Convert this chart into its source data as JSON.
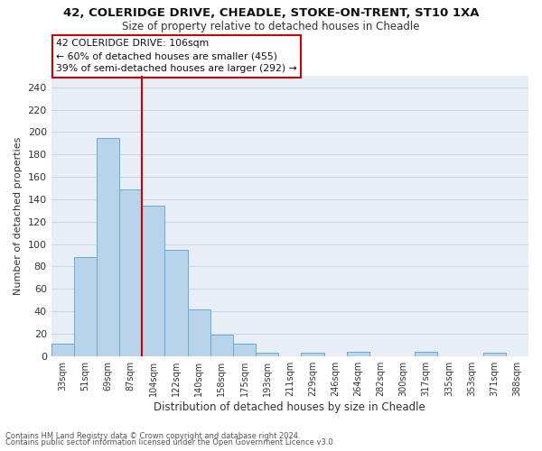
{
  "title": "42, COLERIDGE DRIVE, CHEADLE, STOKE-ON-TRENT, ST10 1XA",
  "subtitle": "Size of property relative to detached houses in Cheadle",
  "xlabel": "Distribution of detached houses by size in Cheadle",
  "ylabel": "Number of detached properties",
  "footnote1": "Contains HM Land Registry data © Crown copyright and database right 2024.",
  "footnote2": "Contains public sector information licensed under the Open Government Licence v3.0.",
  "bar_labels": [
    "33sqm",
    "51sqm",
    "69sqm",
    "87sqm",
    "104sqm",
    "122sqm",
    "140sqm",
    "158sqm",
    "175sqm",
    "193sqm",
    "211sqm",
    "229sqm",
    "246sqm",
    "264sqm",
    "282sqm",
    "300sqm",
    "317sqm",
    "335sqm",
    "353sqm",
    "371sqm",
    "388sqm"
  ],
  "bar_values": [
    11,
    88,
    195,
    149,
    134,
    95,
    42,
    19,
    11,
    3,
    0,
    3,
    0,
    4,
    0,
    0,
    4,
    0,
    0,
    3,
    0
  ],
  "bar_color": "#b8d4ea",
  "bar_edge_color": "#6aaad4",
  "vline_color": "#cc0000",
  "ylim": [
    0,
    250
  ],
  "yticks": [
    0,
    20,
    40,
    60,
    80,
    100,
    120,
    140,
    160,
    180,
    200,
    220,
    240
  ],
  "annotation_title": "42 COLERIDGE DRIVE: 106sqm",
  "annotation_line1": "← 60% of detached houses are smaller (455)",
  "annotation_line2": "39% of semi-detached houses are larger (292) →",
  "annotation_box_color": "#ffffff",
  "annotation_box_edge": "#cc0000",
  "grid_color": "#ccd8e8",
  "bg_color": "#e8eef6"
}
